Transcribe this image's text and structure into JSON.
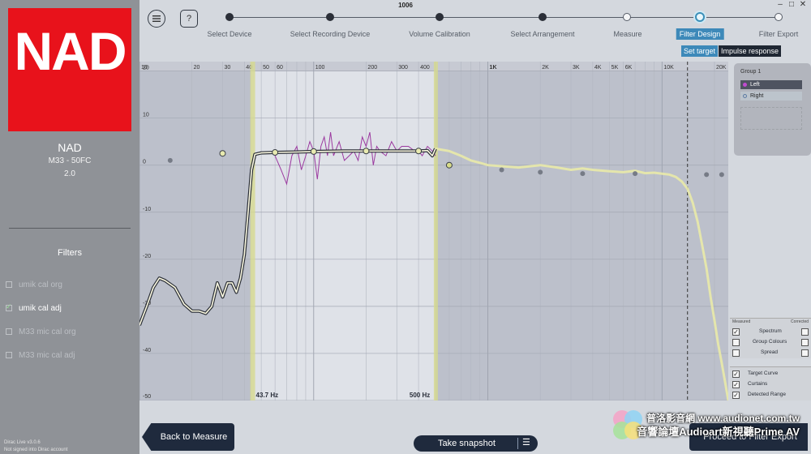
{
  "window": {
    "title": "1006",
    "controls": [
      "–",
      "□",
      "✕"
    ]
  },
  "sidebar": {
    "logo_text": "NAD",
    "device_name": "NAD",
    "device_model": "M33 - 50FC",
    "device_version": "2.0",
    "filters_title": "Filters",
    "filters": [
      {
        "label": "umik cal org",
        "checked": false,
        "active": false
      },
      {
        "label": "umik cal adj",
        "checked": true,
        "active": true
      },
      {
        "label": "M33 mic cal org",
        "checked": false,
        "active": false
      },
      {
        "label": "M33 mic cal adj",
        "checked": false,
        "active": false
      }
    ],
    "footer_version": "Dirac Live v3.0.6",
    "footer_signin": "Not signed into Dirac account"
  },
  "toolbar": {
    "menu_icon": "hamburger-icon",
    "help_label": "?"
  },
  "steps": [
    {
      "label": "Select Device",
      "state": "done"
    },
    {
      "label": "Select Recording Device",
      "state": "done"
    },
    {
      "label": "Volume Calibration",
      "state": "done"
    },
    {
      "label": "Select Arrangement",
      "state": "done"
    },
    {
      "label": "Measure",
      "state": "open"
    },
    {
      "label": "Filter Design",
      "state": "current"
    },
    {
      "label": "Filter Export",
      "state": "open"
    }
  ],
  "subtabs": {
    "set_target": "Set target",
    "impulse_response": "Impulse response"
  },
  "group_panel": {
    "title": "Group 1",
    "channels": [
      {
        "label": "Left",
        "color": "#9c3aa0"
      },
      {
        "label": "Right",
        "color": "#6f8fb5"
      }
    ]
  },
  "options": {
    "measured_label": "Measured",
    "corrected_label": "Corrected",
    "rows": [
      {
        "label": "Spectrum",
        "measured": true,
        "corrected": false
      },
      {
        "label": "Group Colours",
        "measured": false,
        "corrected": false
      },
      {
        "label": "Spread",
        "measured": false,
        "corrected": false
      }
    ],
    "toggles": [
      {
        "label": "Target Curve",
        "checked": true
      },
      {
        "label": "Curtains",
        "checked": true
      },
      {
        "label": "Detected Range",
        "checked": true
      }
    ]
  },
  "buttons": {
    "back": "Back to Measure",
    "snapshot": "Take snapshot",
    "snapshot_icon": "list-icon",
    "proceed": "Proceed to Filter Export"
  },
  "watermark": {
    "line1": "普洛影音網 www.audionet.com.tw",
    "line2": "音響論壇Audioart新視聽Prime AV"
  },
  "colors": {
    "measured_curve": "#9c3aa0",
    "target_curve": "#fdfbe2",
    "curtain_line": "#d8dc8a",
    "accent": "#3d89b9",
    "logo_red": "#e8121b"
  },
  "chart_data": {
    "type": "line",
    "x_scale": "log",
    "x_range": [
      10,
      24000
    ],
    "y_range": [
      -50,
      22
    ],
    "x_tick_labels": [
      {
        "v": 10,
        "t": "10"
      },
      {
        "v": 20,
        "t": "20"
      },
      {
        "v": 30,
        "t": "30"
      },
      {
        "v": 40,
        "t": "40"
      },
      {
        "v": 50,
        "t": "50"
      },
      {
        "v": 60,
        "t": "60"
      },
      {
        "v": 100,
        "t": "100"
      },
      {
        "v": 200,
        "t": "200"
      },
      {
        "v": 300,
        "t": "300"
      },
      {
        "v": 400,
        "t": "400"
      },
      {
        "v": 1000,
        "t": "1K"
      },
      {
        "v": 2000,
        "t": "2K"
      },
      {
        "v": 3000,
        "t": "3K"
      },
      {
        "v": 4000,
        "t": "4K"
      },
      {
        "v": 5000,
        "t": "5K"
      },
      {
        "v": 6000,
        "t": "6K"
      },
      {
        "v": 10000,
        "t": "10K"
      },
      {
        "v": 20000,
        "t": "20K"
      }
    ],
    "y_ticks": [
      20,
      10,
      0,
      -10,
      -20,
      -30,
      -40,
      -50
    ],
    "curtain_low": {
      "freq": 43.7,
      "label": "43.7 Hz"
    },
    "curtain_high": {
      "freq": 500,
      "label": "500 Hz"
    },
    "detected_range_freq": 14000,
    "target_curve": [
      [
        10,
        -34
      ],
      [
        11,
        -30
      ],
      [
        12,
        -26
      ],
      [
        13,
        -24
      ],
      [
        14,
        -24.5
      ],
      [
        16,
        -26
      ],
      [
        18,
        -29.5
      ],
      [
        20,
        -31
      ],
      [
        22,
        -31
      ],
      [
        24,
        -31.5
      ],
      [
        26,
        -30
      ],
      [
        28,
        -25
      ],
      [
        30,
        -28
      ],
      [
        32,
        -25
      ],
      [
        34,
        -25
      ],
      [
        36,
        -27
      ],
      [
        38,
        -24
      ],
      [
        40,
        -19
      ],
      [
        42,
        -10
      ],
      [
        44,
        -1
      ],
      [
        46,
        2.3
      ],
      [
        50,
        2.6
      ],
      [
        60,
        2.7
      ],
      [
        80,
        2.8
      ],
      [
        100,
        2.9
      ],
      [
        150,
        3
      ],
      [
        200,
        3
      ],
      [
        300,
        3
      ],
      [
        400,
        3
      ],
      [
        450,
        3.1
      ],
      [
        480,
        2
      ],
      [
        500,
        3.5
      ]
    ],
    "target_handles": [
      [
        30,
        2.5
      ],
      [
        60,
        2.7
      ],
      [
        100,
        2.9
      ],
      [
        200,
        3
      ],
      [
        400,
        3
      ]
    ],
    "measured_curve": [
      [
        60,
        2
      ],
      [
        65,
        -1
      ],
      [
        70,
        -4
      ],
      [
        75,
        2
      ],
      [
        80,
        4
      ],
      [
        85,
        -1
      ],
      [
        90,
        2
      ],
      [
        95,
        5
      ],
      [
        100,
        3
      ],
      [
        105,
        -3
      ],
      [
        110,
        4
      ],
      [
        115,
        6
      ],
      [
        120,
        2
      ],
      [
        125,
        7
      ],
      [
        130,
        2
      ],
      [
        140,
        5
      ],
      [
        150,
        1
      ],
      [
        160,
        2
      ],
      [
        170,
        3
      ],
      [
        180,
        1
      ],
      [
        190,
        6
      ],
      [
        200,
        4
      ],
      [
        210,
        7
      ],
      [
        220,
        0
      ],
      [
        230,
        4
      ],
      [
        240,
        3
      ],
      [
        260,
        2
      ],
      [
        280,
        5
      ],
      [
        300,
        3
      ],
      [
        320,
        4
      ],
      [
        350,
        4
      ],
      [
        380,
        3
      ],
      [
        400,
        3
      ],
      [
        420,
        2
      ],
      [
        450,
        4
      ],
      [
        480,
        3
      ],
      [
        500,
        2
      ]
    ],
    "outside_target": [
      [
        500,
        3.5
      ],
      [
        600,
        3
      ],
      [
        700,
        2
      ],
      [
        800,
        1
      ],
      [
        900,
        0.5
      ],
      [
        1000,
        0
      ],
      [
        1500,
        -0.5
      ],
      [
        2000,
        0
      ],
      [
        2500,
        -0.5
      ],
      [
        3000,
        -1
      ],
      [
        3500,
        -0.7
      ],
      [
        4000,
        -1
      ],
      [
        5000,
        -1.3
      ],
      [
        6000,
        -1.5
      ],
      [
        7000,
        -1.2
      ],
      [
        8000,
        -1.7
      ],
      [
        9000,
        -1.6
      ],
      [
        10000,
        -1.8
      ],
      [
        11000,
        -2
      ],
      [
        12000,
        -2.5
      ],
      [
        13000,
        -3.5
      ],
      [
        14000,
        -5
      ],
      [
        15000,
        -8
      ],
      [
        16000,
        -12
      ],
      [
        17000,
        -17
      ],
      [
        18000,
        -22
      ],
      [
        19000,
        -28
      ],
      [
        20000,
        -33
      ],
      [
        21000,
        -38
      ],
      [
        22000,
        -42
      ],
      [
        23000,
        -46
      ],
      [
        24000,
        -50
      ]
    ],
    "outside_handles_open": [
      [
        600,
        0
      ]
    ],
    "outside_handles": [
      [
        15,
        1
      ],
      [
        1200,
        -1
      ],
      [
        2000,
        -1.5
      ],
      [
        3500,
        -1.8
      ],
      [
        7000,
        -1.8
      ],
      [
        18000,
        -2
      ],
      [
        22000,
        -2
      ]
    ]
  }
}
